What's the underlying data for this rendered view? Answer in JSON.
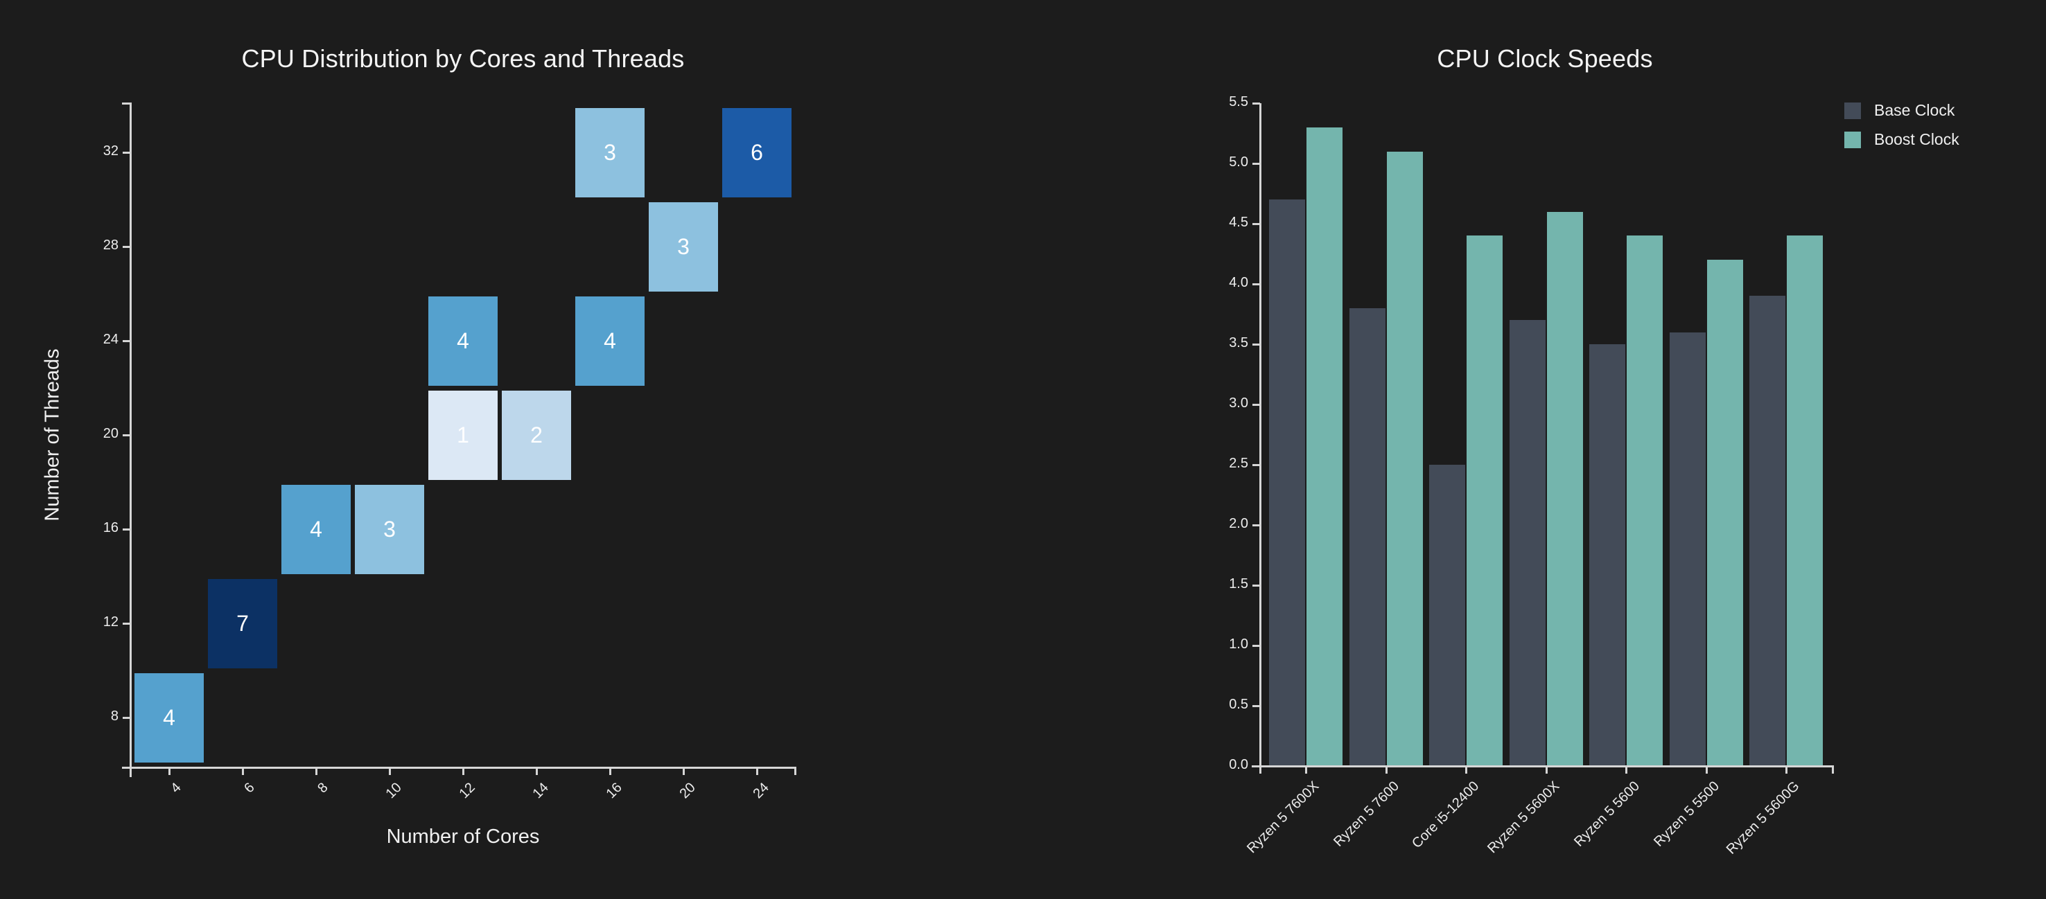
{
  "page": {
    "background": "#1c1c1c",
    "text_color": "#ededed",
    "axis_color": "#d6d6d6"
  },
  "chart_data": [
    {
      "type": "heatmap",
      "title": "CPU Distribution by Cores and Threads",
      "xlabel": "Number of Cores",
      "ylabel": "Number of Threads",
      "x_categories": [
        "4",
        "6",
        "8",
        "10",
        "12",
        "14",
        "16",
        "20",
        "24"
      ],
      "y_categories": [
        "8",
        "12",
        "16",
        "20",
        "24",
        "28",
        "32"
      ],
      "value_label_color": "#ffffff",
      "cells": [
        {
          "x": "4",
          "y": "8",
          "value": 4,
          "color": "#55a1ce"
        },
        {
          "x": "6",
          "y": "12",
          "value": 7,
          "color": "#0c3164"
        },
        {
          "x": "8",
          "y": "16",
          "value": 4,
          "color": "#55a1ce"
        },
        {
          "x": "10",
          "y": "16",
          "value": 3,
          "color": "#8dc1df"
        },
        {
          "x": "12",
          "y": "20",
          "value": 1,
          "color": "#dce8f5"
        },
        {
          "x": "14",
          "y": "20",
          "value": 2,
          "color": "#bdd7eb"
        },
        {
          "x": "12",
          "y": "24",
          "value": 4,
          "color": "#55a1ce"
        },
        {
          "x": "16",
          "y": "24",
          "value": 4,
          "color": "#55a1ce"
        },
        {
          "x": "20",
          "y": "28",
          "value": 3,
          "color": "#8dc1df"
        },
        {
          "x": "16",
          "y": "32",
          "value": 3,
          "color": "#8dc1df"
        },
        {
          "x": "24",
          "y": "32",
          "value": 6,
          "color": "#1c5ba7"
        }
      ]
    },
    {
      "type": "bar",
      "title": "CPU Clock Speeds",
      "categories": [
        "Ryzen 5 7600X",
        "Ryzen 5 7600",
        "Core i5-12400",
        "Ryzen 5 5600X",
        "Ryzen 5 5600",
        "Ryzen 5 5500",
        "Ryzen 5 5600G"
      ],
      "series": [
        {
          "name": "Base Clock",
          "color": "#434b58",
          "values": [
            4.7,
            3.8,
            2.5,
            3.7,
            3.5,
            3.6,
            3.9
          ]
        },
        {
          "name": "Boost Clock",
          "color": "#74b5ad",
          "values": [
            5.3,
            5.1,
            4.4,
            4.6,
            4.4,
            4.2,
            4.4
          ]
        }
      ],
      "ylim": [
        0,
        5.5
      ],
      "ytick_step": 0.5,
      "grid": false,
      "legend_position": "top-right"
    }
  ]
}
